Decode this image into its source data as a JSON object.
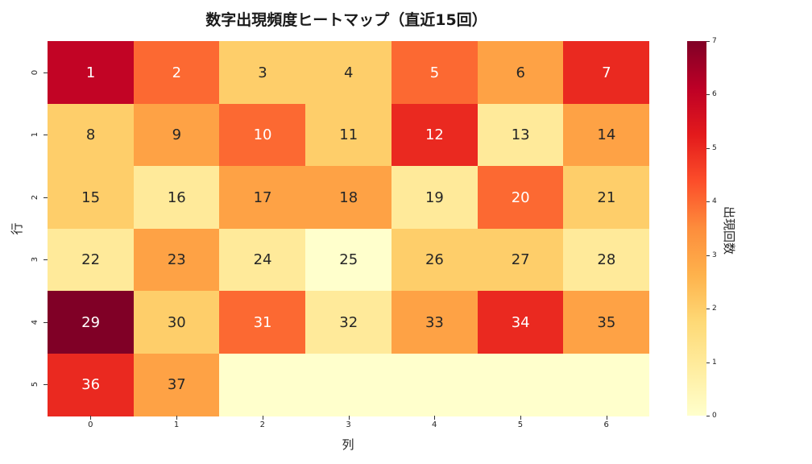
{
  "chart_data": {
    "type": "heatmap",
    "title": "数字出現頻度ヒートマップ（直近15回）",
    "xlabel": "列",
    "ylabel": "行",
    "x_ticks": [
      "0",
      "1",
      "2",
      "3",
      "4",
      "5",
      "6"
    ],
    "y_ticks": [
      "0",
      "1",
      "2",
      "3",
      "4",
      "5"
    ],
    "cell_labels": [
      [
        "1",
        "2",
        "3",
        "4",
        "5",
        "6",
        "7"
      ],
      [
        "8",
        "9",
        "10",
        "11",
        "12",
        "13",
        "14"
      ],
      [
        "15",
        "16",
        "17",
        "18",
        "19",
        "20",
        "21"
      ],
      [
        "22",
        "23",
        "24",
        "25",
        "26",
        "27",
        "28"
      ],
      [
        "29",
        "30",
        "31",
        "32",
        "33",
        "34",
        "35"
      ],
      [
        "36",
        "37",
        "",
        "",
        "",
        "",
        ""
      ]
    ],
    "values": [
      [
        6,
        4,
        2,
        2,
        4,
        3,
        5
      ],
      [
        2,
        3,
        4,
        2,
        5,
        1,
        3
      ],
      [
        2,
        1,
        3,
        3,
        1,
        4,
        2
      ],
      [
        1,
        3,
        1,
        0,
        2,
        2,
        1
      ],
      [
        7,
        2,
        4,
        1,
        3,
        5,
        3
      ],
      [
        5,
        3,
        0,
        0,
        0,
        0,
        0
      ]
    ],
    "colormap": "YlOrRd",
    "colorbar": {
      "label": "出現回数",
      "range": [
        0,
        7
      ],
      "ticks": [
        "0",
        "1",
        "2",
        "3",
        "4",
        "5",
        "6",
        "7"
      ]
    },
    "grid": false
  }
}
